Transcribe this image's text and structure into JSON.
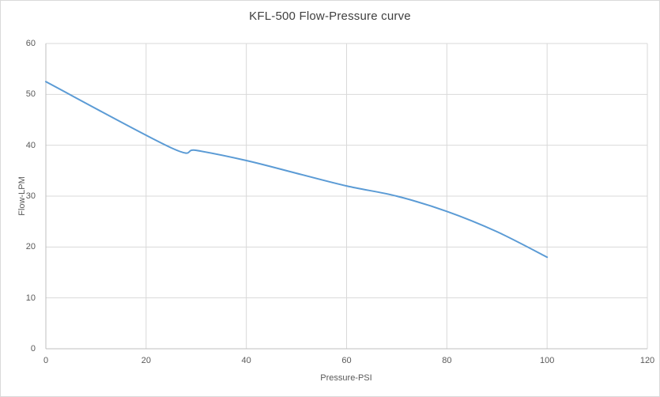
{
  "chart_data": {
    "type": "line",
    "title": "KFL-500 Flow-Pressure curve",
    "xlabel": "Pressure-PSI",
    "ylabel": "Flow-LPM",
    "xlim": [
      0,
      120
    ],
    "ylim": [
      0,
      60
    ],
    "x_ticks": [
      0,
      20,
      40,
      60,
      80,
      100,
      120
    ],
    "y_ticks": [
      0,
      10,
      20,
      30,
      40,
      50,
      60
    ],
    "grid": true,
    "legend": "none",
    "series": [
      {
        "name": "KFL-500",
        "x": [
          0,
          25,
          30,
          40,
          50,
          60,
          70,
          80,
          90,
          100
        ],
        "y": [
          52.5,
          39.5,
          39,
          37,
          34.5,
          32,
          30,
          27,
          23,
          18
        ],
        "color": "#5B9BD5",
        "smooth": true,
        "stroke_width": 2
      }
    ],
    "colors": {
      "line": "#5B9BD5",
      "gridline": "#D9D9D9",
      "axis_line": "#BFBFBF",
      "tick_label": "#595959",
      "axis_title": "#595959",
      "title": "#3F3F3F",
      "background": "#FFFFFF",
      "border": "#D9D9D9"
    }
  }
}
